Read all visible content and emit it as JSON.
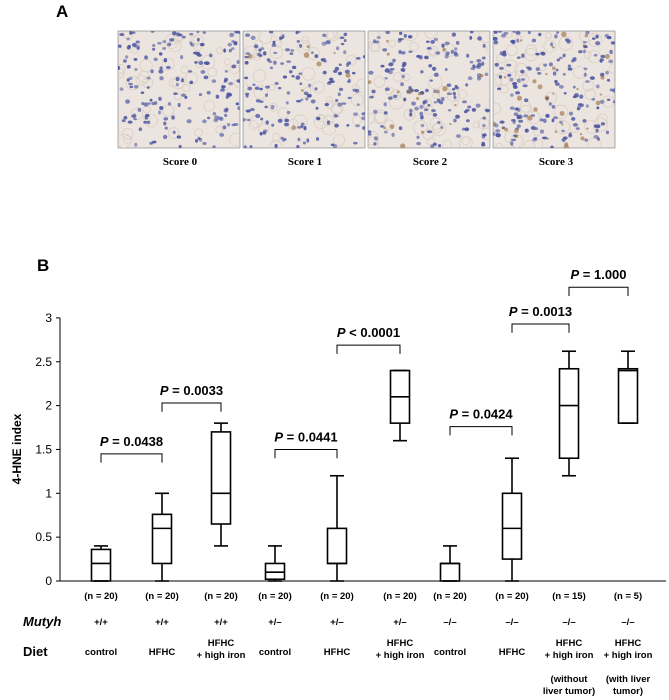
{
  "panel_a": {
    "letter": "A",
    "images": [
      {
        "label": "Score 0",
        "cell_count": 160,
        "brown_count": 0
      },
      {
        "label": "Score 1",
        "cell_count": 150,
        "brown_count": 8
      },
      {
        "label": "Score 2",
        "cell_count": 150,
        "brown_count": 18
      },
      {
        "label": "Score 3",
        "cell_count": 170,
        "brown_count": 34
      }
    ],
    "colors": {
      "background": "#ece4de",
      "nucleus": "#4b56a2",
      "stain": "#9a6a3a"
    }
  },
  "chart_data": {
    "type": "box",
    "panel_letter": "B",
    "ylabel": "4-HNE index",
    "ylim": [
      0,
      3
    ],
    "yticks": [
      "0",
      "0.5",
      "1",
      "1.5",
      "2",
      "2.5",
      "3"
    ],
    "boxes": [
      {
        "n": "(n = 20)",
        "mutyh": "+/+",
        "diet": [
          "control"
        ],
        "min": 0,
        "q1": 0,
        "median": 0.2,
        "q3": 0.36,
        "max": 0.4
      },
      {
        "n": "(n = 20)",
        "mutyh": "+/+",
        "diet": [
          "HFHC"
        ],
        "min": 0,
        "q1": 0.2,
        "median": 0.6,
        "q3": 0.76,
        "max": 1.0
      },
      {
        "n": "(n = 20)",
        "mutyh": "+/+",
        "diet": [
          "HFHC",
          "+ high iron"
        ],
        "min": 0.4,
        "q1": 0.65,
        "median": 1.0,
        "q3": 1.7,
        "max": 1.8
      },
      {
        "n": "(n = 20)",
        "mutyh": "+/–",
        "diet": [
          "control"
        ],
        "min": 0,
        "q1": 0.02,
        "median": 0.1,
        "q3": 0.2,
        "max": 0.4
      },
      {
        "n": "(n = 20)",
        "mutyh": "+/–",
        "diet": [
          "HFHC"
        ],
        "min": 0,
        "q1": 0.2,
        "median": 0.2,
        "q3": 0.6,
        "max": 1.2
      },
      {
        "n": "(n = 20)",
        "mutyh": "+/–",
        "diet": [
          "HFHC",
          "+ high iron"
        ],
        "min": 1.6,
        "q1": 1.8,
        "median": 2.1,
        "q3": 2.4,
        "max": 2.4
      },
      {
        "n": "(n = 20)",
        "mutyh": "–/–",
        "diet": [
          "control"
        ],
        "min": 0,
        "q1": 0,
        "median": 0.2,
        "q3": 0.2,
        "max": 0.4
      },
      {
        "n": "(n = 20)",
        "mutyh": "–/–",
        "diet": [
          "HFHC"
        ],
        "min": 0,
        "q1": 0.25,
        "median": 0.6,
        "q3": 1.0,
        "max": 1.4
      },
      {
        "n": "(n = 15)",
        "mutyh": "–/–",
        "diet": [
          "HFHC",
          "+ high iron",
          "(without",
          "liver tumor)"
        ],
        "min": 1.2,
        "q1": 1.4,
        "median": 2.0,
        "q3": 2.42,
        "max": 2.62
      },
      {
        "n": "(n = 5)",
        "mutyh": "–/–",
        "diet": [
          "HFHC",
          "+ high iron",
          "(with liver",
          "tumor)"
        ],
        "min": 1.8,
        "q1": 1.8,
        "median": 2.4,
        "q3": 2.42,
        "max": 2.62
      }
    ],
    "comparisons": [
      {
        "label": "P = 0.0438",
        "from": 0,
        "to": 1,
        "bracket_y": 1.45,
        "drop_y": 1.35
      },
      {
        "label": "P = 0.0033",
        "from": 1,
        "to": 2,
        "bracket_y": 2.03,
        "drop_y": 1.93
      },
      {
        "label": "P = 0.0441",
        "from": 3,
        "to": 4,
        "bracket_y": 1.5,
        "drop_y": 1.4
      },
      {
        "label": "P < 0.0001",
        "from": 4,
        "to": 5,
        "bracket_y": 2.69,
        "drop_y": 2.59
      },
      {
        "label": "P = 0.0424",
        "from": 6,
        "to": 7,
        "bracket_y": 1.76,
        "drop_y": 1.66
      },
      {
        "label": "P = 0.0013",
        "from": 7,
        "to": 8,
        "bracket_y": 2.93,
        "drop_y": 2.83
      },
      {
        "label": "P = 1.000",
        "from": 8,
        "to": 9,
        "bracket_y": 3.35,
        "drop_y": 3.25
      }
    ],
    "row_labels": {
      "mutyh": "Mutyh",
      "diet": "Diet"
    }
  }
}
